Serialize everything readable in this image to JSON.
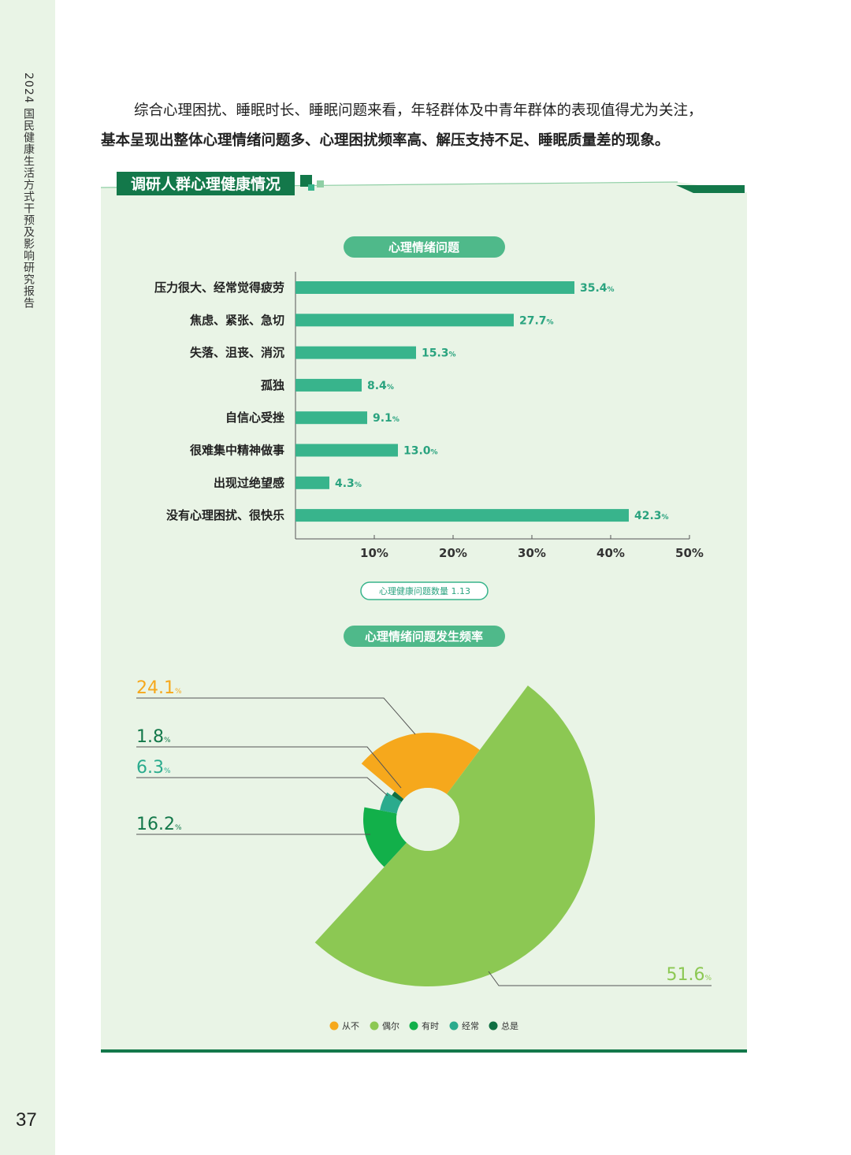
{
  "sidebar": {
    "title": "2024 国民健康生活方式干预及影响研究报告",
    "page_number": "37"
  },
  "intro": {
    "line1": "综合心理困扰、睡眠时长、睡眠问题来看，年轻群体及中青年群体的表现值得尤为关注，",
    "line2": "基本呈现出整体心理情绪问题多、心理困扰频率高、解压支持不足、睡眠质量差的现象。"
  },
  "section": {
    "title": "调研人群心理健康情况"
  },
  "colors": {
    "bar": "#38b48c",
    "panel": "#e9f4e6",
    "dark_green": "#13784a",
    "pill": "#4fb98a"
  },
  "chart_data": [
    {
      "type": "bar",
      "orientation": "horizontal",
      "title": "心理情绪问题",
      "categories": [
        "压力很大、经常觉得疲劳",
        "焦虑、紧张、急切",
        "失落、沮丧、消沉",
        "孤独",
        "自信心受挫",
        "很难集中精神做事",
        "出现过绝望感",
        "没有心理困扰、很快乐"
      ],
      "values": [
        35.4,
        27.7,
        15.3,
        8.4,
        9.1,
        13.0,
        4.3,
        42.3
      ],
      "value_labels": [
        "35.4",
        "27.7",
        "15.3",
        "8.4",
        "9.1",
        "13.0",
        "4.3",
        "42.3"
      ],
      "unit": "%",
      "xlim": [
        0,
        50
      ],
      "xticks": [
        "10%",
        "20%",
        "30%",
        "40%",
        "50%"
      ],
      "note": "心理健康问题数量 1.13"
    },
    {
      "type": "pie",
      "title": "心理情绪问题发生频率",
      "slices": [
        {
          "name": "从不",
          "value": 24.1,
          "color": "#f6a81c"
        },
        {
          "name": "偶尔",
          "value": 51.6,
          "color": "#8cc853"
        },
        {
          "name": "有时",
          "value": 16.2,
          "color": "#12b04a"
        },
        {
          "name": "经常",
          "value": 6.3,
          "color": "#2aab8d"
        },
        {
          "name": "总是",
          "value": 1.8,
          "color": "#0f6f42"
        }
      ],
      "labels": [
        {
          "text": "24.1",
          "color": "#f6a81c"
        },
        {
          "text": "1.8",
          "color": "#13784a"
        },
        {
          "text": "6.3",
          "color": "#2aab8d"
        },
        {
          "text": "16.2",
          "color": "#13784a"
        },
        {
          "text": "51.6",
          "color": "#8cc853"
        }
      ],
      "unit": "%",
      "legend": [
        "从不",
        "偶尔",
        "有时",
        "经常",
        "总是"
      ]
    }
  ]
}
